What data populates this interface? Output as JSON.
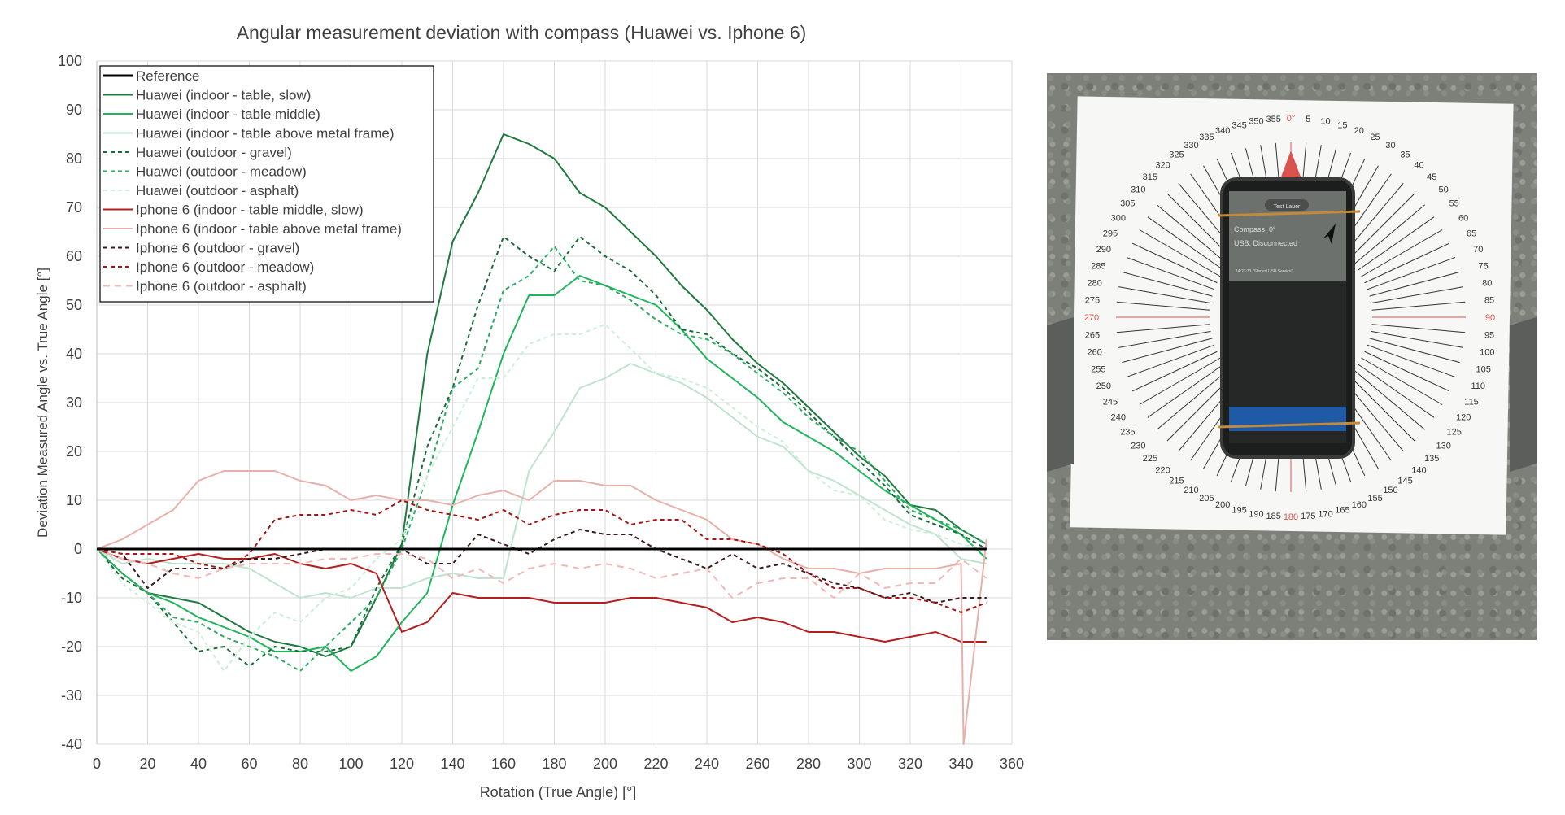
{
  "chart_data": {
    "type": "line",
    "title": "Angular measurement deviation with compass (Huawei vs. Iphone 6)",
    "xlabel": "Rotation (True Angle) [°]",
    "ylabel": "Deviation Measured Angle vs. True Angle [°]",
    "xlim": [
      0,
      360
    ],
    "ylim": [
      -40,
      100
    ],
    "xticks": [
      0,
      20,
      40,
      60,
      80,
      100,
      120,
      140,
      160,
      180,
      200,
      220,
      240,
      260,
      280,
      300,
      320,
      340,
      360
    ],
    "yticks": [
      -40,
      -30,
      -20,
      -10,
      0,
      10,
      20,
      30,
      40,
      50,
      60,
      70,
      80,
      90,
      100
    ],
    "grid": true,
    "legend_position": "top-left",
    "x": [
      0,
      10,
      20,
      30,
      40,
      50,
      60,
      70,
      80,
      90,
      100,
      110,
      120,
      130,
      140,
      150,
      160,
      170,
      180,
      190,
      200,
      210,
      220,
      230,
      240,
      250,
      260,
      270,
      280,
      290,
      300,
      310,
      320,
      330,
      340,
      350
    ],
    "series": [
      {
        "name": "Reference",
        "color": "#000000",
        "dash": "solid",
        "width": 3,
        "values": [
          0,
          0,
          0,
          0,
          0,
          0,
          0,
          0,
          0,
          0,
          0,
          0,
          0,
          0,
          0,
          0,
          0,
          0,
          0,
          0,
          0,
          0,
          0,
          0,
          0,
          0,
          0,
          0,
          0,
          0,
          0,
          0,
          0,
          0,
          0,
          0
        ]
      },
      {
        "name": "Huawei (indoor - table, slow)",
        "color": "#1e7a3e",
        "dash": "solid",
        "width": 2,
        "values": [
          0,
          -5,
          -9,
          -10,
          -11,
          -14,
          -17,
          -19,
          -20,
          -22,
          -20,
          -10,
          1,
          40,
          63,
          73,
          85,
          83,
          80,
          73,
          70,
          65,
          60,
          54,
          49,
          43,
          38,
          34,
          29,
          24,
          19,
          15,
          9,
          8,
          4,
          1
        ]
      },
      {
        "name": "Huawei (indoor - table middle)",
        "color": "#1fb55a",
        "dash": "solid",
        "width": 2,
        "values": [
          0,
          -5,
          -9,
          -11,
          -14,
          -16,
          -18,
          -21,
          -21,
          -20,
          -25,
          -22,
          -15,
          -9,
          9,
          24,
          40,
          52,
          52,
          56,
          54,
          52,
          50,
          45,
          39,
          35,
          31,
          26,
          23,
          20,
          16,
          12,
          9,
          6,
          3,
          -2
        ]
      },
      {
        "name": "Huawei (indoor - table above metal frame)",
        "color": "#bfe3cf",
        "dash": "solid",
        "width": 2,
        "values": [
          0,
          -3,
          -2,
          -3,
          -3,
          -3,
          -4,
          -7,
          -10,
          -9,
          -10,
          -8,
          -8,
          -6,
          -5,
          -6,
          -6,
          16,
          24,
          33,
          35,
          38,
          36,
          34,
          31,
          27,
          23,
          21,
          16,
          14,
          11,
          8,
          5,
          3,
          -2,
          -3
        ]
      },
      {
        "name": "Huawei (outdoor - gravel)",
        "color": "#1a6b3a",
        "dash": "5,4",
        "width": 2,
        "values": [
          0,
          -6,
          -9,
          -15,
          -21,
          -20,
          -24,
          -20,
          -21,
          -21,
          -20,
          -8,
          1,
          21,
          33,
          50,
          64,
          60,
          57,
          64,
          60,
          57,
          52,
          45,
          44,
          40,
          37,
          33,
          28,
          23,
          18,
          13,
          7,
          5,
          3,
          0
        ]
      },
      {
        "name": "Huawei (outdoor - meadow)",
        "color": "#2eaa62",
        "dash": "5,4",
        "width": 2,
        "values": [
          0,
          -5,
          -9,
          -14,
          -15,
          -18,
          -20,
          -22,
          -25,
          -20,
          -15,
          -10,
          0,
          15,
          33,
          37,
          53,
          56,
          62,
          55,
          54,
          51,
          47,
          44,
          43,
          40,
          36,
          32,
          27,
          23,
          20,
          14,
          8,
          6,
          4,
          1
        ]
      },
      {
        "name": "Huawei (outdoor - asphalt)",
        "color": "#cdeedb",
        "dash": "5,4",
        "width": 2,
        "values": [
          0,
          -7,
          -11,
          -15,
          -17,
          -25,
          -18,
          -13,
          -15,
          -10,
          -8,
          -2,
          2,
          15,
          25,
          35,
          35,
          42,
          44,
          44,
          46,
          41,
          36,
          35,
          33,
          29,
          25,
          22,
          16,
          12,
          11,
          6,
          4,
          3,
          1,
          0
        ]
      },
      {
        "name": "Iphone 6 (indoor - table middle, slow)",
        "color": "#b41e1e",
        "dash": "solid",
        "width": 2,
        "values": [
          0,
          -2,
          -3,
          -2,
          -1,
          -2,
          -2,
          -1,
          -3,
          -4,
          -3,
          -5,
          -17,
          -15,
          -9,
          -10,
          -10,
          -10,
          -11,
          -11,
          -11,
          -10,
          -10,
          -11,
          -12,
          -15,
          -14,
          -15,
          -17,
          -17,
          -18,
          -19,
          -18,
          -17,
          -19,
          -19
        ]
      },
      {
        "name": "Iphone 6 (indoor - table above metal frame)",
        "color": "#e8b0aa",
        "dash": "solid",
        "width": 2,
        "values": [
          0,
          2,
          5,
          8,
          14,
          16,
          16,
          16,
          14,
          13,
          10,
          11,
          10,
          10,
          9,
          11,
          12,
          10,
          14,
          14,
          13,
          13,
          10,
          8,
          6,
          2,
          1,
          -2,
          -4,
          -4,
          -5,
          -4,
          -4,
          -4,
          -3,
          2
        ]
      },
      {
        "name": "Iphone 6 (outdoor - gravel)",
        "color": "#3a1a1a",
        "dash": "5,4",
        "width": 2,
        "values": [
          0,
          -1,
          -8,
          -4,
          -4,
          -4,
          -2,
          -2,
          -1,
          0,
          0,
          0,
          0,
          -3,
          -3,
          3,
          1,
          -1,
          2,
          4,
          3,
          3,
          0,
          -2,
          -4,
          -1,
          -4,
          -3,
          -5,
          -7,
          -8,
          -10,
          -9,
          -11,
          -10,
          -10
        ]
      },
      {
        "name": "Iphone 6 (outdoor - meadow)",
        "color": "#a31515",
        "dash": "5,4",
        "width": 2,
        "values": [
          0,
          -1,
          -1,
          -1,
          -3,
          -4,
          -1,
          6,
          7,
          7,
          8,
          7,
          10,
          8,
          7,
          6,
          8,
          5,
          7,
          8,
          8,
          5,
          6,
          6,
          2,
          2,
          1,
          -1,
          -5,
          -8,
          -8,
          -10,
          -10,
          -11,
          -13,
          -11
        ]
      },
      {
        "name": "Iphone 6 (outdoor - asphalt)",
        "color": "#f0b9b6",
        "dash": "8,6",
        "width": 2,
        "values": [
          0,
          -2,
          -3,
          -5,
          -6,
          -4,
          -3,
          -3,
          -3,
          -2,
          -2,
          -1,
          -1,
          -2,
          -6,
          -4,
          -7,
          -4,
          -3,
          -4,
          -3,
          -4,
          -6,
          -5,
          -4,
          -10,
          -7,
          -6,
          -6,
          -10,
          -5,
          -8,
          -7,
          -7,
          -2,
          -6
        ]
      }
    ],
    "spike": {
      "series": "Iphone 6 (indoor - table above metal frame)",
      "x": 341,
      "y": -40
    }
  },
  "photo": {
    "compass_labels": [
      "320",
      "325",
      "330",
      "335",
      "340",
      "345",
      "350",
      "355",
      "0°",
      "5",
      "10",
      "15",
      "20",
      "25",
      "30",
      "35",
      "40",
      "45",
      "50",
      "55",
      "60",
      "65",
      "70",
      "75",
      "80",
      "85",
      "90",
      "95",
      "100",
      "105",
      "110",
      "115",
      "120",
      "125",
      "130",
      "135",
      "140",
      "145",
      "150",
      "155",
      "160",
      "165",
      "170",
      "175",
      "180",
      "185",
      "190",
      "195",
      "200",
      "205",
      "210",
      "215",
      "220",
      "225",
      "230",
      "235",
      "240",
      "245",
      "250",
      "255",
      "260",
      "265",
      "270",
      "275",
      "280",
      "285",
      "290",
      "295",
      "300",
      "305",
      "310",
      "315"
    ],
    "phone_status_1": "Compass: 0°",
    "phone_status_2": "USB: Disconnected",
    "phone_log": "14:23:33 \"Started USB Service\"",
    "phone_header": "Test Lauer"
  },
  "colors": {
    "grid": "#d9d9d9",
    "axis_text": "#404040",
    "paper": "#ffffff",
    "gravel": "#7d7f79",
    "red_marker": "#d9534f"
  }
}
